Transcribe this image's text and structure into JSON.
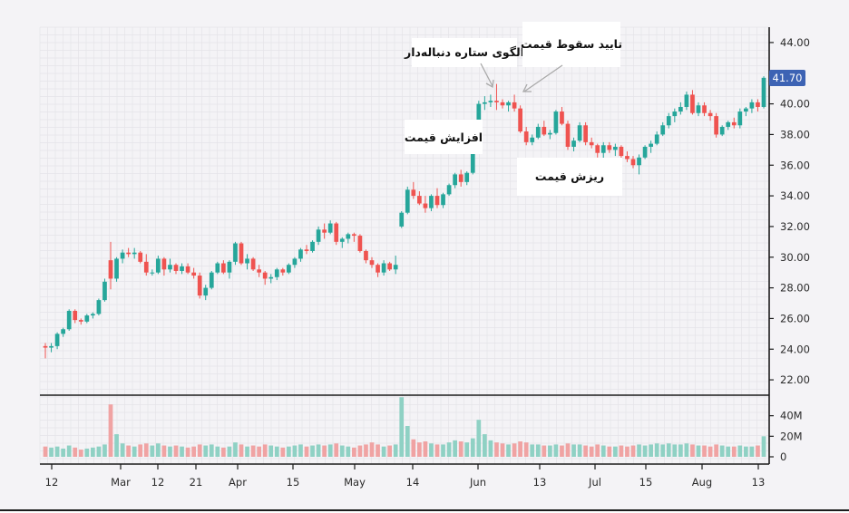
{
  "chart_data": {
    "type": "candlestick",
    "colors": {
      "up": "#26a69a",
      "down": "#ef5350",
      "up_volume": "#8fd1c4",
      "down_volume": "#f0a3a3",
      "tag": "#3d63b4"
    },
    "price_axis": {
      "ticks": [
        "22.00",
        "24.00",
        "26.00",
        "28.00",
        "30.00",
        "32.00",
        "34.00",
        "36.00",
        "38.00",
        "40.00",
        "44.00"
      ],
      "ylim": [
        21,
        45
      ]
    },
    "volume_axis": {
      "ticks": [
        "0",
        "20M",
        "40M"
      ],
      "ylim": [
        0,
        60
      ]
    },
    "x_tick_labels": [
      "12",
      "Mar",
      "12",
      "21",
      "Apr",
      "15",
      "May",
      "14",
      "Jun",
      "13",
      "Jul",
      "15",
      "Aug",
      "13"
    ],
    "last_price": "41.70",
    "annotations": {
      "rise": "افزایش قیمت",
      "pattern": "الگوی ستاره دنباله‌دار",
      "confirm": "تایید سقوط قیمت",
      "fall": "ریزش قیمت"
    },
    "candles": [
      [
        24.2,
        24.4,
        23.4,
        24.1,
        10
      ],
      [
        24.1,
        24.4,
        23.8,
        24.2,
        9
      ],
      [
        24.2,
        25.1,
        24.0,
        25.0,
        10
      ],
      [
        25.0,
        25.4,
        24.8,
        25.3,
        8
      ],
      [
        25.3,
        26.6,
        25.2,
        26.5,
        11
      ],
      [
        26.5,
        26.6,
        25.7,
        25.9,
        9
      ],
      [
        25.9,
        26.0,
        25.6,
        25.8,
        7
      ],
      [
        25.8,
        26.3,
        25.7,
        26.2,
        8
      ],
      [
        26.2,
        26.4,
        26.0,
        26.3,
        9
      ],
      [
        26.3,
        27.3,
        26.2,
        27.2,
        10
      ],
      [
        27.2,
        28.6,
        27.1,
        28.4,
        12
      ],
      [
        29.8,
        31.0,
        27.9,
        28.6,
        51
      ],
      [
        28.6,
        30.0,
        28.4,
        29.9,
        22
      ],
      [
        29.9,
        30.5,
        29.6,
        30.3,
        13
      ],
      [
        30.3,
        30.6,
        30.0,
        30.2,
        11
      ],
      [
        30.2,
        30.6,
        29.9,
        30.3,
        10
      ],
      [
        30.3,
        30.4,
        29.6,
        29.7,
        12
      ],
      [
        29.7,
        30.2,
        28.8,
        29.0,
        13
      ],
      [
        29.0,
        29.2,
        28.8,
        29.0,
        11
      ],
      [
        29.0,
        30.1,
        28.9,
        29.9,
        13
      ],
      [
        29.9,
        30.0,
        28.8,
        29.2,
        11
      ],
      [
        29.2,
        29.9,
        29.0,
        29.5,
        10
      ],
      [
        29.5,
        29.6,
        28.9,
        29.1,
        11
      ],
      [
        29.1,
        29.6,
        28.9,
        29.4,
        10
      ],
      [
        29.4,
        29.6,
        28.9,
        29.0,
        9
      ],
      [
        29.0,
        29.3,
        28.6,
        28.8,
        10
      ],
      [
        28.8,
        29.0,
        27.3,
        27.5,
        12
      ],
      [
        27.5,
        28.2,
        27.2,
        28.0,
        11
      ],
      [
        28.0,
        29.1,
        27.9,
        29.0,
        12
      ],
      [
        29.0,
        29.7,
        28.9,
        29.6,
        10
      ],
      [
        29.6,
        29.8,
        28.9,
        29.0,
        9
      ],
      [
        29.0,
        29.8,
        28.6,
        29.7,
        10
      ],
      [
        29.7,
        31.0,
        29.5,
        30.9,
        14
      ],
      [
        30.9,
        31.0,
        29.5,
        29.6,
        12
      ],
      [
        29.6,
        30.2,
        29.2,
        29.9,
        10
      ],
      [
        29.9,
        30.0,
        29.1,
        29.2,
        11
      ],
      [
        29.2,
        29.5,
        28.7,
        29.0,
        10
      ],
      [
        29.0,
        29.1,
        28.2,
        28.6,
        12
      ],
      [
        28.6,
        28.9,
        28.3,
        28.7,
        11
      ],
      [
        28.7,
        29.3,
        28.5,
        29.2,
        10
      ],
      [
        29.2,
        29.3,
        28.8,
        29.0,
        9
      ],
      [
        29.0,
        29.6,
        28.9,
        29.5,
        10
      ],
      [
        29.5,
        30.0,
        29.3,
        29.9,
        11
      ],
      [
        29.9,
        30.6,
        29.7,
        30.5,
        12
      ],
      [
        30.5,
        30.8,
        30.2,
        30.4,
        10
      ],
      [
        30.4,
        31.1,
        30.3,
        31.0,
        11
      ],
      [
        31.0,
        32.0,
        30.8,
        31.8,
        12
      ],
      [
        31.8,
        32.2,
        31.2,
        31.6,
        11
      ],
      [
        31.6,
        32.4,
        31.5,
        32.2,
        12
      ],
      [
        32.2,
        32.3,
        30.8,
        31.0,
        13
      ],
      [
        31.0,
        31.3,
        30.6,
        31.2,
        11
      ],
      [
        31.2,
        31.6,
        30.9,
        31.5,
        10
      ],
      [
        31.5,
        31.6,
        31.0,
        31.4,
        9
      ],
      [
        31.4,
        31.5,
        30.3,
        30.4,
        11
      ],
      [
        30.4,
        30.5,
        29.6,
        29.8,
        12
      ],
      [
        29.8,
        30.0,
        29.3,
        29.5,
        14
      ],
      [
        29.5,
        29.6,
        28.7,
        29.0,
        12
      ],
      [
        29.0,
        29.8,
        28.8,
        29.6,
        10
      ],
      [
        29.6,
        29.7,
        29.1,
        29.2,
        11
      ],
      [
        29.2,
        30.1,
        28.9,
        29.5,
        12
      ],
      [
        32.0,
        33.0,
        31.9,
        32.9,
        58
      ],
      [
        32.9,
        34.6,
        32.8,
        34.4,
        30
      ],
      [
        34.4,
        34.9,
        33.8,
        34.0,
        17
      ],
      [
        34.0,
        34.3,
        33.4,
        33.5,
        14
      ],
      [
        33.5,
        34.0,
        32.9,
        33.2,
        15
      ],
      [
        33.2,
        34.1,
        33.0,
        34.0,
        13
      ],
      [
        34.0,
        34.5,
        33.2,
        33.4,
        12
      ],
      [
        33.4,
        34.2,
        33.2,
        34.1,
        12
      ],
      [
        34.1,
        34.8,
        34.0,
        34.7,
        14
      ],
      [
        34.7,
        35.5,
        34.5,
        35.4,
        16
      ],
      [
        35.4,
        35.7,
        34.6,
        34.9,
        15
      ],
      [
        34.9,
        35.6,
        34.7,
        35.5,
        14
      ],
      [
        35.5,
        37.1,
        35.4,
        37.0,
        18
      ],
      [
        37.0,
        40.2,
        36.9,
        40.0,
        36
      ],
      [
        40.0,
        40.5,
        39.6,
        40.1,
        22
      ],
      [
        40.1,
        40.6,
        39.8,
        40.2,
        16
      ],
      [
        40.2,
        41.3,
        39.6,
        40.1,
        14
      ],
      [
        40.1,
        40.3,
        39.7,
        39.9,
        13
      ],
      [
        39.9,
        40.2,
        39.5,
        40.1,
        12
      ],
      [
        40.1,
        40.6,
        39.5,
        39.7,
        13
      ],
      [
        39.7,
        39.9,
        38.1,
        38.2,
        15
      ],
      [
        38.2,
        38.5,
        37.3,
        37.5,
        14
      ],
      [
        37.5,
        38.0,
        37.3,
        37.8,
        12
      ],
      [
        37.8,
        38.7,
        37.7,
        38.5,
        12
      ],
      [
        38.5,
        38.9,
        37.9,
        38.0,
        11
      ],
      [
        38.0,
        38.3,
        37.7,
        38.1,
        11
      ],
      [
        38.1,
        39.6,
        38.0,
        39.5,
        12
      ],
      [
        39.5,
        39.8,
        38.6,
        38.7,
        11
      ],
      [
        38.7,
        38.9,
        37.0,
        37.2,
        13
      ],
      [
        37.2,
        37.8,
        36.9,
        37.6,
        12
      ],
      [
        37.6,
        38.8,
        37.5,
        38.6,
        12
      ],
      [
        38.6,
        38.8,
        37.3,
        37.5,
        11
      ],
      [
        37.5,
        37.8,
        37.1,
        37.3,
        10
      ],
      [
        37.3,
        37.4,
        36.5,
        36.8,
        12
      ],
      [
        36.8,
        37.5,
        36.3,
        37.3,
        11
      ],
      [
        37.3,
        37.5,
        36.8,
        37.0,
        10
      ],
      [
        37.0,
        37.4,
        36.6,
        37.2,
        10
      ],
      [
        37.2,
        37.3,
        36.4,
        36.6,
        11
      ],
      [
        36.6,
        36.9,
        36.2,
        36.4,
        10
      ],
      [
        36.4,
        36.6,
        35.8,
        36.0,
        11
      ],
      [
        36.0,
        36.7,
        35.4,
        36.5,
        12
      ],
      [
        36.5,
        37.3,
        36.4,
        37.2,
        11
      ],
      [
        37.2,
        37.6,
        36.8,
        37.4,
        12
      ],
      [
        37.4,
        38.2,
        37.3,
        38.0,
        13
      ],
      [
        38.0,
        38.8,
        37.9,
        38.6,
        12
      ],
      [
        38.6,
        39.4,
        38.4,
        39.2,
        13
      ],
      [
        39.2,
        39.7,
        38.8,
        39.5,
        12
      ],
      [
        39.5,
        40.1,
        39.3,
        39.8,
        12
      ],
      [
        39.8,
        40.8,
        39.6,
        40.6,
        13
      ],
      [
        40.6,
        40.9,
        39.3,
        39.4,
        12
      ],
      [
        39.4,
        40.1,
        39.2,
        39.9,
        11
      ],
      [
        39.9,
        40.1,
        39.2,
        39.4,
        11
      ],
      [
        39.4,
        39.6,
        38.9,
        39.2,
        10
      ],
      [
        39.2,
        39.4,
        37.8,
        38.0,
        12
      ],
      [
        38.0,
        38.6,
        37.9,
        38.5,
        11
      ],
      [
        38.5,
        38.9,
        38.3,
        38.8,
        10
      ],
      [
        38.8,
        39.1,
        38.4,
        38.6,
        10
      ],
      [
        38.6,
        39.7,
        38.4,
        39.5,
        11
      ],
      [
        39.5,
        39.8,
        39.2,
        39.7,
        10
      ],
      [
        39.7,
        40.3,
        39.4,
        40.1,
        10
      ],
      [
        40.1,
        40.3,
        39.5,
        39.8,
        11
      ],
      [
        39.8,
        41.8,
        39.7,
        41.7,
        20
      ]
    ]
  }
}
